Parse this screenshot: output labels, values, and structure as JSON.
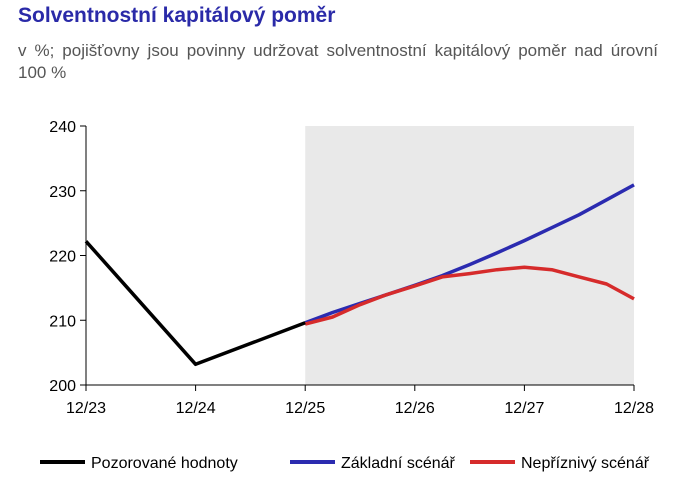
{
  "title": "Solventnostní kapitálový poměr",
  "subtitle": "v %; pojišťovny jsou povinny udržovat solventnostní kapitálový poměr nad úrovní 100 %",
  "chart_data": {
    "type": "line",
    "title": "Solventnostní kapitálový poměr",
    "subtitle": "v %; pojišťovny jsou povinny udržovat solventnostní kapitálový poměr nad úrovní 100 %",
    "x_ticks": [
      "12/23",
      "12/24",
      "12/25",
      "12/26",
      "12/27",
      "12/28"
    ],
    "y_ticks": [
      "200",
      "210",
      "220",
      "230",
      "240"
    ],
    "xlim": [
      0,
      20
    ],
    "ylim": [
      200,
      240
    ],
    "x_unit": "quarters since 12/23",
    "forecast_shading": {
      "from": 8,
      "to": 20,
      "color": "#e9e9e9"
    },
    "grid": false,
    "legend_position": "bottom",
    "series": [
      {
        "name": "Pozorované hodnoty",
        "color": "#000000",
        "x": [
          0,
          4,
          8
        ],
        "y": [
          222.2,
          203.2,
          209.6
        ]
      },
      {
        "name": "Základní scénář",
        "color": "#2b2bb0",
        "x": [
          8,
          9,
          10,
          11,
          12,
          13,
          14,
          15,
          16,
          17,
          18,
          19,
          20
        ],
        "y": [
          209.6,
          211.2,
          212.6,
          214.0,
          215.4,
          216.9,
          218.6,
          220.4,
          222.3,
          224.3,
          226.3,
          228.6,
          230.9
        ]
      },
      {
        "name": "Nepříznivý scénář",
        "color": "#d62b2b",
        "x": [
          8,
          9,
          10,
          11,
          12,
          13,
          14,
          15,
          16,
          17,
          18,
          19,
          20
        ],
        "y": [
          209.4,
          210.5,
          212.4,
          214.0,
          215.3,
          216.7,
          217.2,
          217.8,
          218.2,
          217.8,
          216.7,
          215.6,
          213.3
        ]
      }
    ]
  }
}
